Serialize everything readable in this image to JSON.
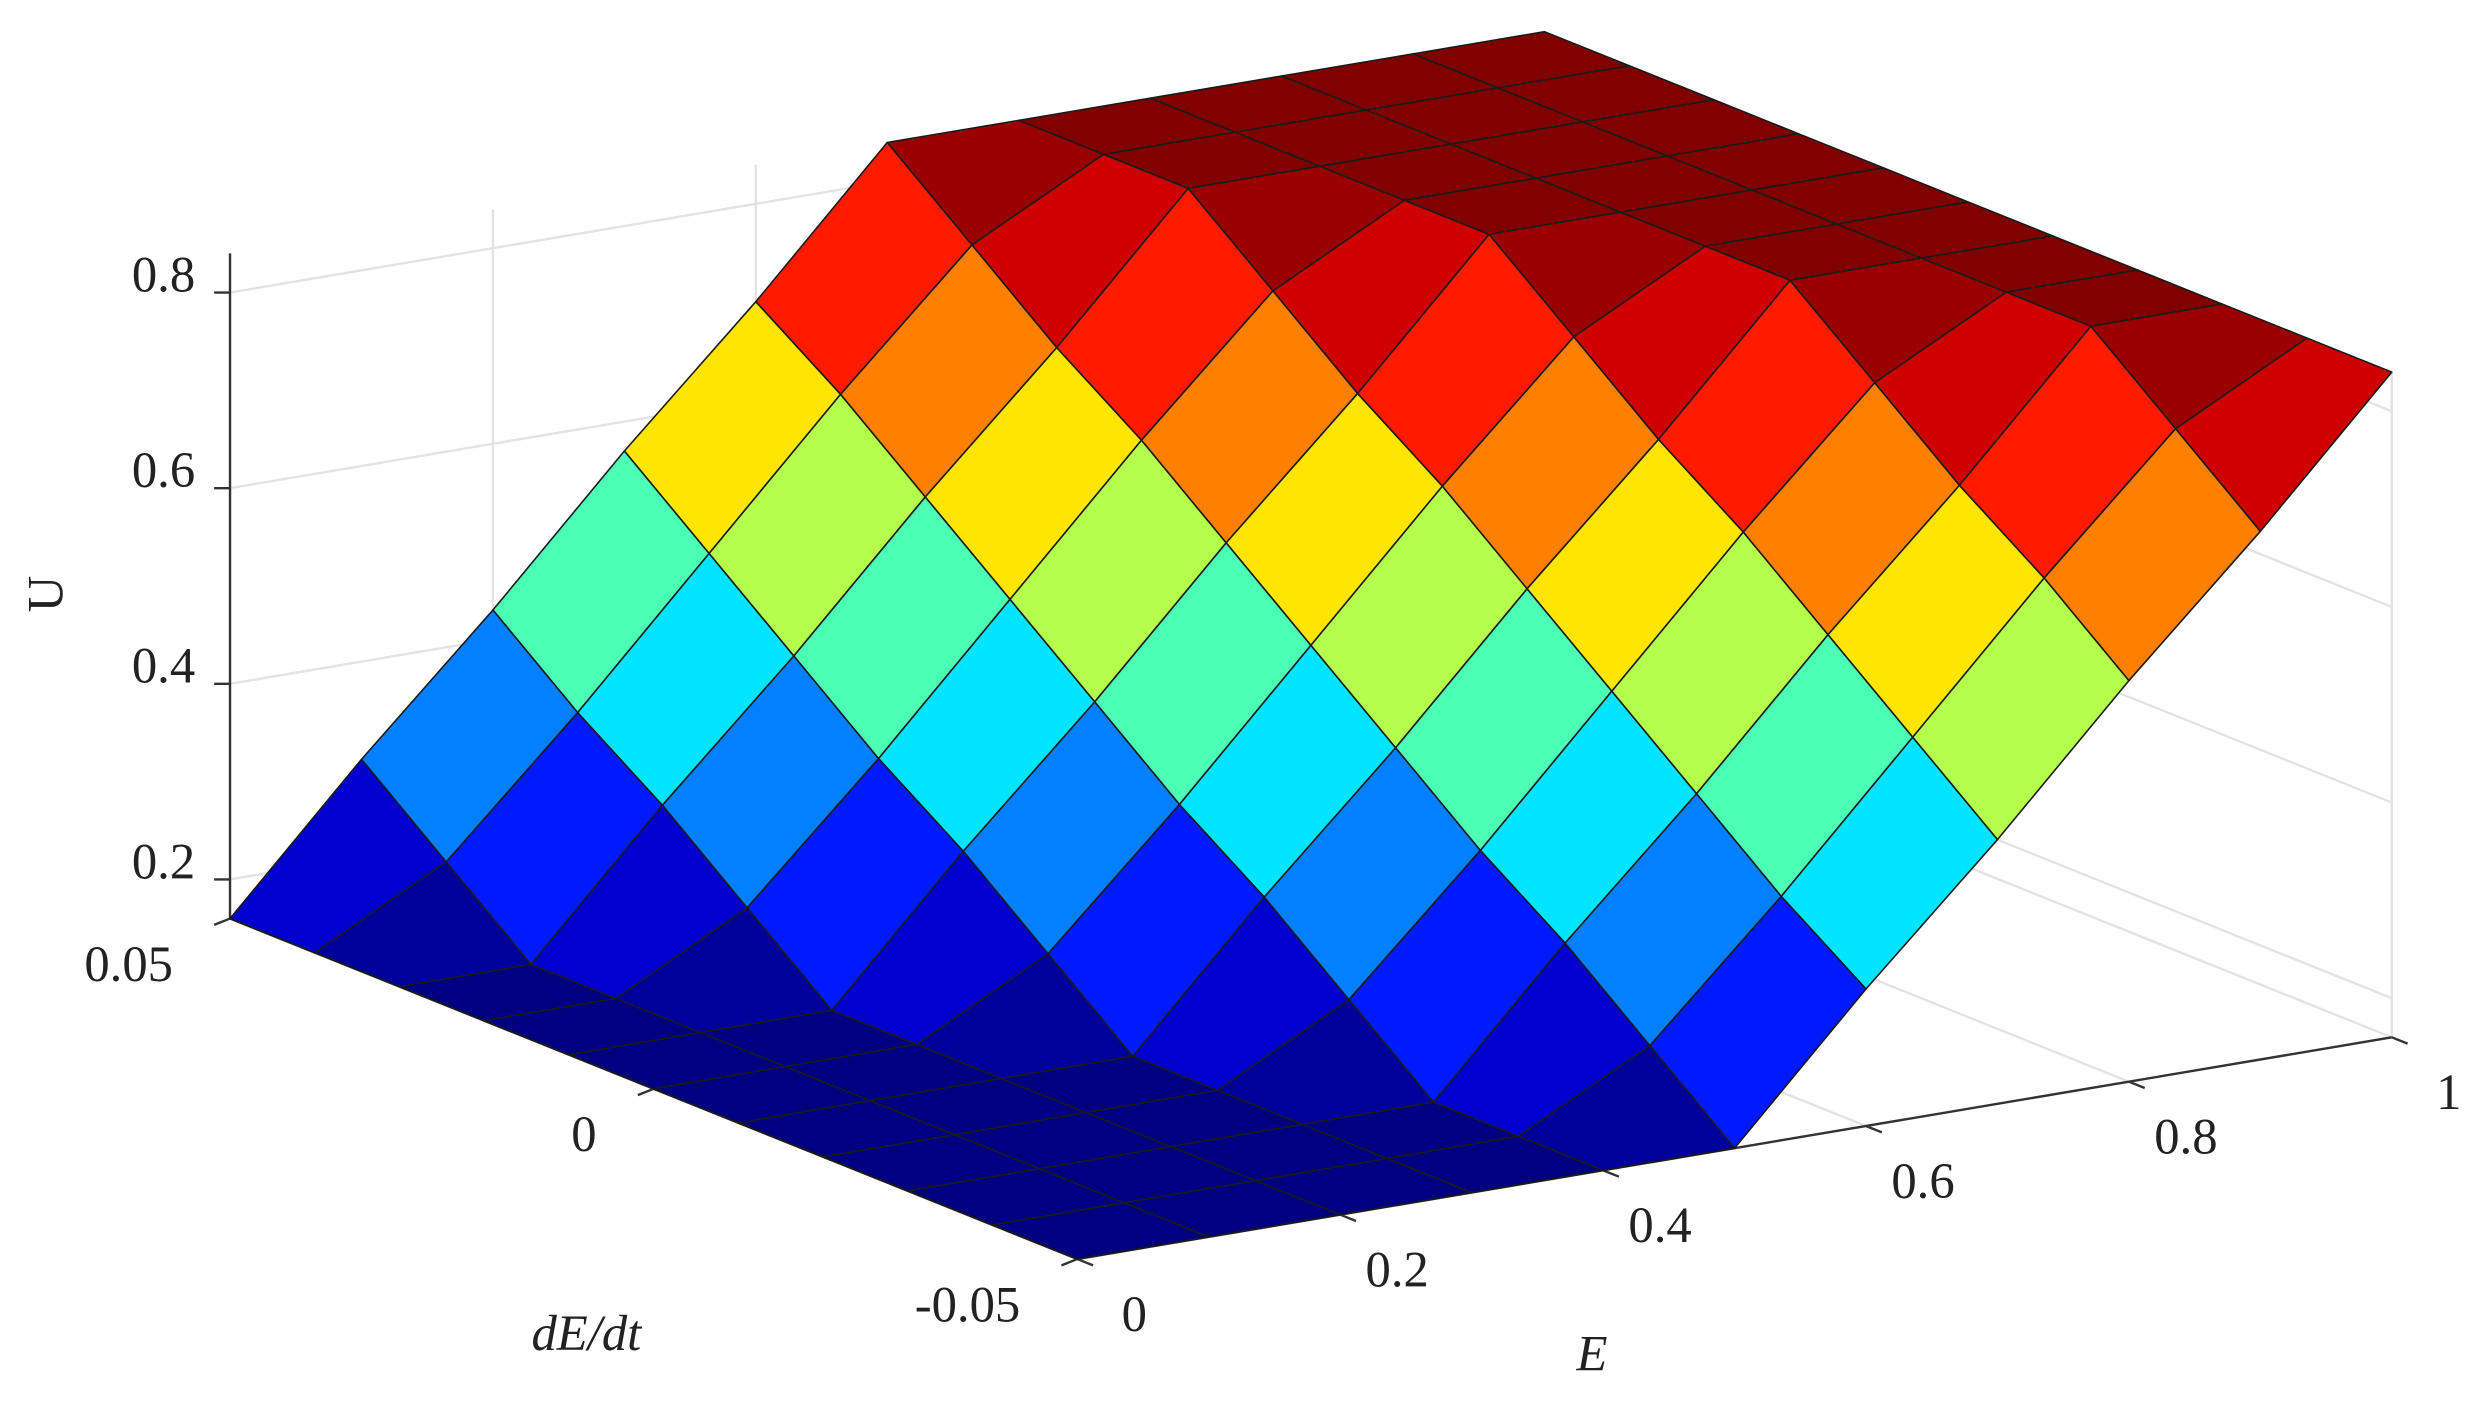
{
  "chart_data": {
    "type": "surface",
    "colormap": "jet",
    "grid": true,
    "xlabel": "E",
    "ylabel": "dE/dt",
    "zlabel": "U",
    "x": [
      0,
      0.1,
      0.2,
      0.3,
      0.4,
      0.5,
      0.6,
      0.7,
      0.8,
      0.9,
      1
    ],
    "y": [
      -0.05,
      -0.04,
      -0.03,
      -0.02,
      -0.01,
      0,
      0.01,
      0.02,
      0.03,
      0.04,
      0.05
    ],
    "z": [
      [
        0.16,
        0.16,
        0.16,
        0.16,
        0.16,
        0.16,
        0.3,
        0.43,
        0.57,
        0.7,
        0.84
      ],
      [
        0.16,
        0.16,
        0.16,
        0.16,
        0.16,
        0.23,
        0.36,
        0.5,
        0.64,
        0.77,
        0.84
      ],
      [
        0.16,
        0.16,
        0.16,
        0.16,
        0.16,
        0.3,
        0.43,
        0.57,
        0.7,
        0.84,
        0.84
      ],
      [
        0.16,
        0.16,
        0.16,
        0.16,
        0.23,
        0.36,
        0.5,
        0.64,
        0.77,
        0.84,
        0.84
      ],
      [
        0.16,
        0.16,
        0.16,
        0.16,
        0.3,
        0.43,
        0.57,
        0.7,
        0.84,
        0.84,
        0.84
      ],
      [
        0.16,
        0.16,
        0.16,
        0.23,
        0.36,
        0.5,
        0.64,
        0.77,
        0.84,
        0.84,
        0.84
      ],
      [
        0.16,
        0.16,
        0.16,
        0.3,
        0.43,
        0.57,
        0.7,
        0.84,
        0.84,
        0.84,
        0.84
      ],
      [
        0.16,
        0.16,
        0.23,
        0.36,
        0.5,
        0.64,
        0.77,
        0.84,
        0.84,
        0.84,
        0.84
      ],
      [
        0.16,
        0.16,
        0.3,
        0.43,
        0.57,
        0.7,
        0.84,
        0.84,
        0.84,
        0.84,
        0.84
      ],
      [
        0.16,
        0.23,
        0.36,
        0.5,
        0.64,
        0.77,
        0.84,
        0.84,
        0.84,
        0.84,
        0.84
      ],
      [
        0.16,
        0.3,
        0.43,
        0.57,
        0.7,
        0.84,
        0.84,
        0.84,
        0.84,
        0.84,
        0.84
      ]
    ],
    "xlim": [
      0,
      1
    ],
    "ylim": [
      -0.05,
      0.05
    ],
    "zlim": [
      0.16,
      0.84
    ],
    "xticks": [
      0,
      0.2,
      0.4,
      0.6,
      0.8,
      1
    ],
    "yticks": [
      -0.05,
      0,
      0.05
    ],
    "zticks": [
      0.2,
      0.4,
      0.6,
      0.8
    ]
  }
}
